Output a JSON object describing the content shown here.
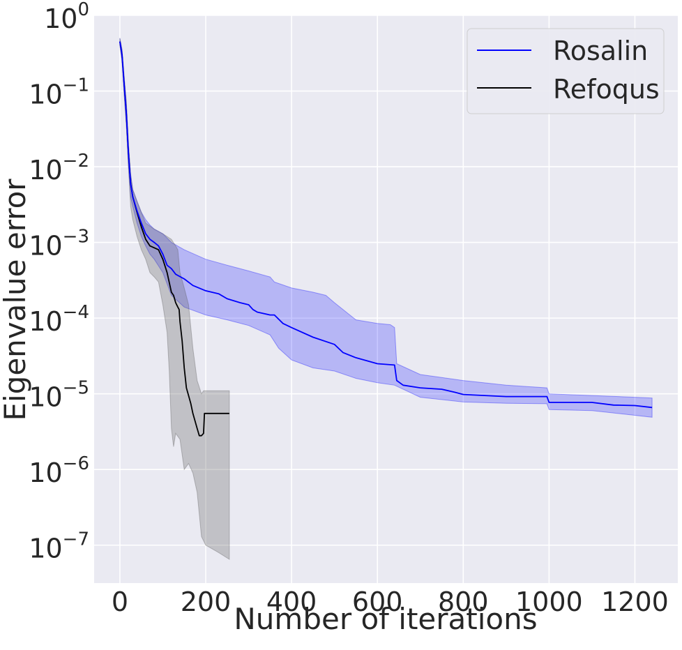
{
  "chart_data": {
    "type": "line",
    "xlabel": "Number of iterations",
    "ylabel": "Eigenvalue error",
    "xlim": [
      -60,
      1300
    ],
    "ylim_log10": [
      -7.5,
      0.0
    ],
    "yscale": "log",
    "grid": true,
    "legend_position": "top-right",
    "x_ticks": [
      {
        "value": 0,
        "label": "0"
      },
      {
        "value": 200,
        "label": "200"
      },
      {
        "value": 400,
        "label": "400"
      },
      {
        "value": 600,
        "label": "600"
      },
      {
        "value": 800,
        "label": "800"
      },
      {
        "value": 1000,
        "label": "1000"
      },
      {
        "value": 1200,
        "label": "1200"
      }
    ],
    "y_ticks": [
      {
        "exp": 0,
        "base": "10",
        "sup": "0"
      },
      {
        "exp": -1,
        "base": "10",
        "sup": "−1"
      },
      {
        "exp": -2,
        "base": "10",
        "sup": "−2"
      },
      {
        "exp": -3,
        "base": "10",
        "sup": "−3"
      },
      {
        "exp": -4,
        "base": "10",
        "sup": "−4"
      },
      {
        "exp": -5,
        "base": "10",
        "sup": "−5"
      },
      {
        "exp": -6,
        "base": "10",
        "sup": "−6"
      },
      {
        "exp": -7,
        "base": "10",
        "sup": "−7"
      }
    ],
    "series": [
      {
        "name": "Rosalin",
        "color": "#0000ff",
        "band_color": "#0000ff",
        "points": [
          [
            0,
            0.45
          ],
          [
            5,
            0.3
          ],
          [
            10,
            0.12
          ],
          [
            15,
            0.05
          ],
          [
            20,
            0.015
          ],
          [
            25,
            0.006
          ],
          [
            30,
            0.004
          ],
          [
            40,
            0.0026
          ],
          [
            50,
            0.0018
          ],
          [
            60,
            0.0013
          ],
          [
            70,
            0.0011
          ],
          [
            80,
            0.001
          ],
          [
            90,
            0.0009
          ],
          [
            100,
            0.0007
          ],
          [
            110,
            0.0005
          ],
          [
            120,
            0.00045
          ],
          [
            130,
            0.00038
          ],
          [
            150,
            0.00033
          ],
          [
            170,
            0.00027
          ],
          [
            200,
            0.00023
          ],
          [
            230,
            0.00021
          ],
          [
            250,
            0.00018
          ],
          [
            280,
            0.00016
          ],
          [
            300,
            0.00015
          ],
          [
            310,
            0.00013
          ],
          [
            320,
            0.00012
          ],
          [
            350,
            0.00011
          ],
          [
            360,
            0.00011
          ],
          [
            380,
            8.5e-05
          ],
          [
            400,
            7.5e-05
          ],
          [
            450,
            5.6e-05
          ],
          [
            500,
            4.5e-05
          ],
          [
            520,
            3.5e-05
          ],
          [
            550,
            3e-05
          ],
          [
            600,
            2.5e-05
          ],
          [
            640,
            2.4e-05
          ],
          [
            645,
            1.5e-05
          ],
          [
            660,
            1.3e-05
          ],
          [
            700,
            1.2e-05
          ],
          [
            750,
            1.15e-05
          ],
          [
            780,
            1.05e-05
          ],
          [
            800,
            9.8e-06
          ],
          [
            900,
            9.2e-06
          ],
          [
            995,
            9.2e-06
          ],
          [
            1000,
            7.7e-06
          ],
          [
            1100,
            7.7e-06
          ],
          [
            1150,
            7.1e-06
          ],
          [
            1200,
            7e-06
          ],
          [
            1240,
            6.6e-06
          ]
        ],
        "band_upper": [
          [
            0,
            0.5
          ],
          [
            5,
            0.35
          ],
          [
            10,
            0.15
          ],
          [
            15,
            0.07
          ],
          [
            20,
            0.02
          ],
          [
            25,
            0.008
          ],
          [
            30,
            0.005
          ],
          [
            40,
            0.0035
          ],
          [
            50,
            0.0025
          ],
          [
            60,
            0.002
          ],
          [
            70,
            0.0017
          ],
          [
            80,
            0.0015
          ],
          [
            100,
            0.0013
          ],
          [
            120,
            0.001
          ],
          [
            150,
            0.0008
          ],
          [
            200,
            0.0006
          ],
          [
            250,
            0.0005
          ],
          [
            300,
            0.00042
          ],
          [
            350,
            0.00035
          ],
          [
            360,
            0.0003
          ],
          [
            400,
            0.00025
          ],
          [
            450,
            0.00022
          ],
          [
            480,
            0.0002
          ],
          [
            500,
            0.00016
          ],
          [
            550,
            9.5e-05
          ],
          [
            600,
            8.5e-05
          ],
          [
            630,
            8.2e-05
          ],
          [
            640,
            7.5e-05
          ],
          [
            645,
            2.5e-05
          ],
          [
            700,
            1.8e-05
          ],
          [
            800,
            1.5e-05
          ],
          [
            900,
            1.3e-05
          ],
          [
            995,
            1.2e-05
          ],
          [
            1000,
            1e-05
          ],
          [
            1100,
            9.5e-06
          ],
          [
            1200,
            9e-06
          ],
          [
            1240,
            8.8e-06
          ]
        ],
        "band_lower": [
          [
            0,
            0.4
          ],
          [
            5,
            0.25
          ],
          [
            10,
            0.09
          ],
          [
            15,
            0.035
          ],
          [
            20,
            0.01
          ],
          [
            25,
            0.004
          ],
          [
            30,
            0.003
          ],
          [
            40,
            0.0018
          ],
          [
            50,
            0.0012
          ],
          [
            60,
            0.0009
          ],
          [
            70,
            0.0007
          ],
          [
            80,
            0.0006
          ],
          [
            100,
            0.0004
          ],
          [
            120,
            0.0002
          ],
          [
            150,
            0.00014
          ],
          [
            200,
            0.00011
          ],
          [
            250,
            9.5e-05
          ],
          [
            300,
            8e-05
          ],
          [
            350,
            6e-05
          ],
          [
            370,
            4e-05
          ],
          [
            400,
            2.8e-05
          ],
          [
            450,
            2.2e-05
          ],
          [
            500,
            2e-05
          ],
          [
            550,
            1.6e-05
          ],
          [
            600,
            1.4e-05
          ],
          [
            640,
            1.3e-05
          ],
          [
            700,
            9e-06
          ],
          [
            800,
            7.8e-06
          ],
          [
            900,
            7.5e-06
          ],
          [
            995,
            7.4e-06
          ],
          [
            1000,
            6.2e-06
          ],
          [
            1100,
            6e-06
          ],
          [
            1200,
            5.2e-06
          ],
          [
            1240,
            4.9e-06
          ]
        ]
      },
      {
        "name": "Refoqus",
        "color": "#000000",
        "band_color": "#555555",
        "points": [
          [
            0,
            0.45
          ],
          [
            5,
            0.3
          ],
          [
            10,
            0.12
          ],
          [
            15,
            0.05
          ],
          [
            20,
            0.015
          ],
          [
            25,
            0.006
          ],
          [
            30,
            0.004
          ],
          [
            40,
            0.0025
          ],
          [
            50,
            0.0016
          ],
          [
            60,
            0.0011
          ],
          [
            70,
            0.0009
          ],
          [
            80,
            0.00085
          ],
          [
            90,
            0.0008
          ],
          [
            100,
            0.0006
          ],
          [
            110,
            0.0004
          ],
          [
            120,
            0.00022
          ],
          [
            125,
            0.0002
          ],
          [
            130,
            0.00016
          ],
          [
            135,
            0.00014
          ],
          [
            138,
            0.00013
          ],
          [
            140,
            9e-05
          ],
          [
            145,
            5e-05
          ],
          [
            150,
            2.2e-05
          ],
          [
            155,
            1.2e-05
          ],
          [
            160,
            9.5e-06
          ],
          [
            165,
            7.5e-06
          ],
          [
            170,
            5.5e-06
          ],
          [
            180,
            3.5e-06
          ],
          [
            185,
            2.8e-06
          ],
          [
            190,
            2.8e-06
          ],
          [
            195,
            3e-06
          ],
          [
            197,
            5.5e-06
          ],
          [
            255,
            5.5e-06
          ]
        ],
        "band_upper": [
          [
            0,
            0.5
          ],
          [
            5,
            0.35
          ],
          [
            10,
            0.15
          ],
          [
            15,
            0.07
          ],
          [
            20,
            0.02
          ],
          [
            25,
            0.008
          ],
          [
            30,
            0.005
          ],
          [
            40,
            0.0035
          ],
          [
            50,
            0.0025
          ],
          [
            60,
            0.0018
          ],
          [
            80,
            0.0015
          ],
          [
            100,
            0.0013
          ],
          [
            120,
            0.0011
          ],
          [
            130,
            0.0009
          ],
          [
            135,
            0.0008
          ],
          [
            140,
            0.0004
          ],
          [
            150,
            0.00025
          ],
          [
            160,
            0.00015
          ],
          [
            170,
            4e-05
          ],
          [
            180,
            1.5e-05
          ],
          [
            190,
            1e-05
          ],
          [
            195,
            1.1e-05
          ],
          [
            255,
            1.1e-05
          ]
        ],
        "band_lower": [
          [
            0,
            0.4
          ],
          [
            5,
            0.25
          ],
          [
            10,
            0.09
          ],
          [
            15,
            0.035
          ],
          [
            20,
            0.01
          ],
          [
            25,
            0.003
          ],
          [
            30,
            0.002
          ],
          [
            40,
            0.0012
          ],
          [
            50,
            0.0008
          ],
          [
            60,
            0.0006
          ],
          [
            70,
            0.0004
          ],
          [
            80,
            0.00035
          ],
          [
            90,
            0.0003
          ],
          [
            100,
            0.00015
          ],
          [
            110,
            6.5e-05
          ],
          [
            115,
            2e-05
          ],
          [
            120,
            3.5e-06
          ],
          [
            125,
            2e-06
          ],
          [
            130,
            3e-06
          ],
          [
            140,
            2.5e-06
          ],
          [
            150,
            1e-06
          ],
          [
            160,
            1.2e-06
          ],
          [
            170,
            9e-07
          ],
          [
            180,
            5e-07
          ],
          [
            190,
            1.3e-07
          ],
          [
            200,
            1e-07
          ],
          [
            230,
            8e-08
          ],
          [
            255,
            6.5e-08
          ]
        ]
      }
    ]
  }
}
